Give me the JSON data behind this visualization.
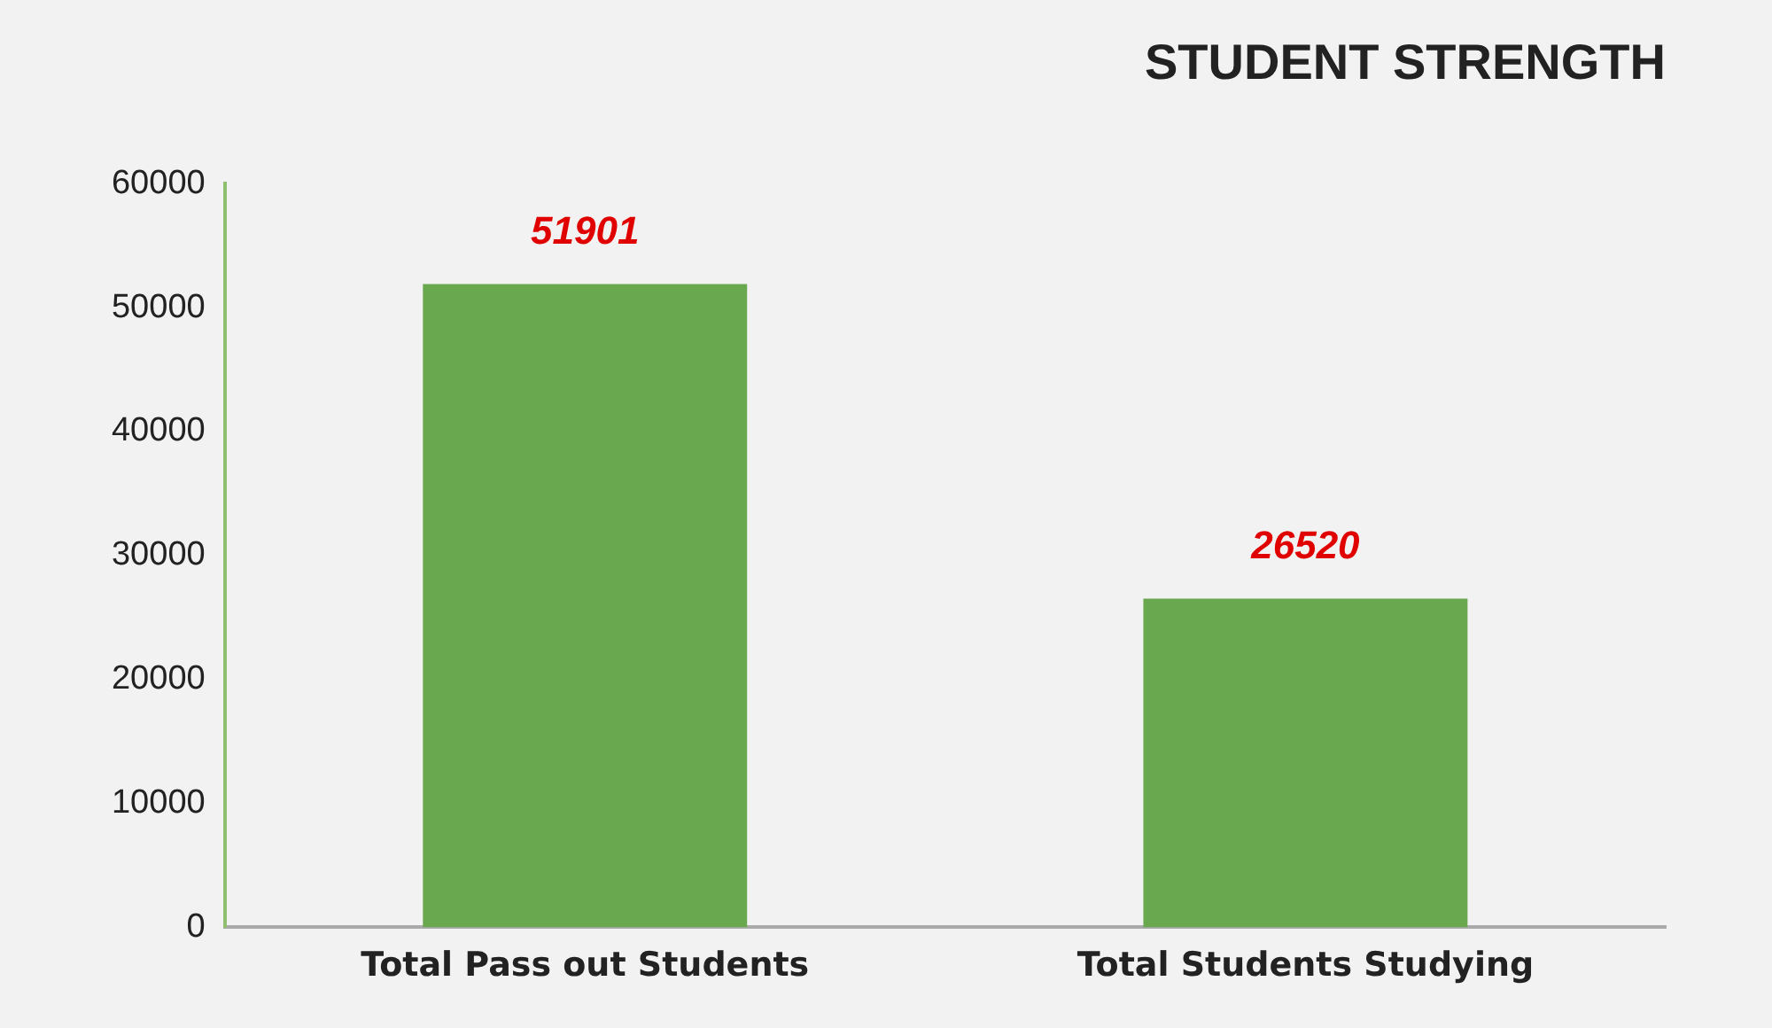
{
  "chart_data": {
    "type": "bar",
    "title": "STUDENT STRENGTH",
    "categories": [
      "Total Pass out Students",
      "Total Students Studying"
    ],
    "values": [
      51901,
      26520
    ],
    "color": "#6aa84f",
    "ylim": [
      0,
      60000
    ],
    "yticks": [
      0,
      10000,
      20000,
      30000,
      40000,
      50000,
      60000
    ],
    "grid": false,
    "legend": false,
    "data_labels": true
  }
}
